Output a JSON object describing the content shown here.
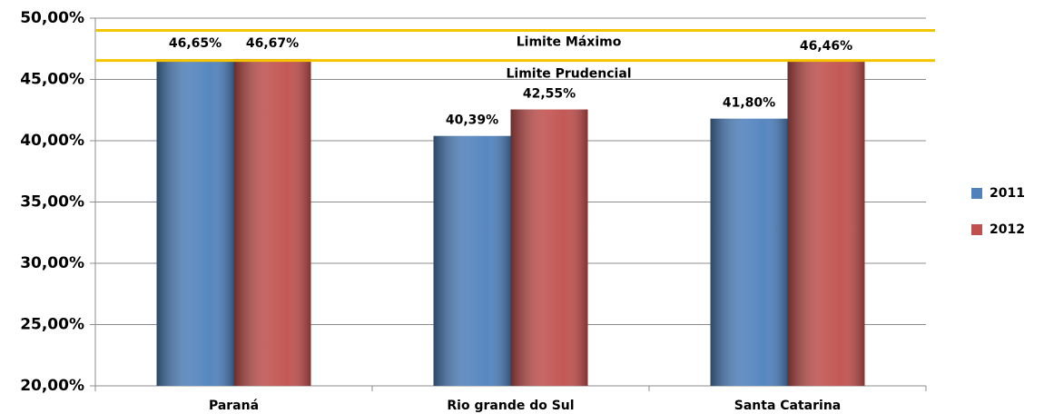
{
  "chart_data": {
    "type": "bar",
    "categories": [
      "Paraná",
      "Rio grande do Sul",
      "Santa Catarina"
    ],
    "series": [
      {
        "name": "2011",
        "color": "#4f81bd",
        "values": [
          46.65,
          40.39,
          41.8
        ],
        "value_labels": [
          "46,65%",
          "40,39%",
          "41,80%"
        ]
      },
      {
        "name": "2012",
        "color": "#c0504d",
        "values": [
          46.67,
          42.55,
          46.46
        ],
        "value_labels": [
          "46,67%",
          "42,55%",
          "46,46%"
        ]
      }
    ],
    "reference_lines": [
      {
        "label": "Limite Máximo",
        "value": 49,
        "color": "#f5c400"
      },
      {
        "label": "Limite Prudencial",
        "value": 46.55,
        "color": "#f5c400"
      }
    ],
    "ylim": [
      20,
      50
    ],
    "yticks": [
      {
        "value": 20,
        "label": "20,00%"
      },
      {
        "value": 25,
        "label": "25,00%"
      },
      {
        "value": 30,
        "label": "30,00%"
      },
      {
        "value": 35,
        "label": "35,00%"
      },
      {
        "value": 40,
        "label": "40,00%"
      },
      {
        "value": 45,
        "label": "45,00%"
      },
      {
        "value": 50,
        "label": "50,00%"
      }
    ],
    "grid": true,
    "legend": "right"
  }
}
